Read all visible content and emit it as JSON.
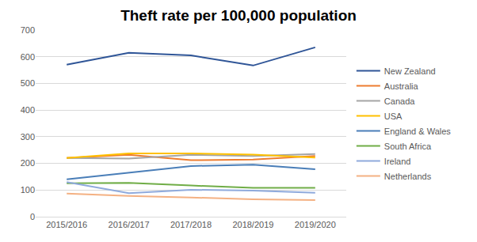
{
  "chart_data": {
    "type": "line",
    "title": "Theft rate per 100,000 population",
    "categories": [
      "2015/2016",
      "2016/2017",
      "2017/2018",
      "2018/2019",
      "2019/2020"
    ],
    "series": [
      {
        "name": "New Zealand",
        "color": "#2f5597",
        "values": [
          570,
          615,
          605,
          567,
          635
        ]
      },
      {
        "name": "Australia",
        "color": "#ed7d31",
        "values": [
          220,
          232,
          212,
          214,
          228
        ]
      },
      {
        "name": "Canada",
        "color": "#a5a5a5",
        "values": [
          220,
          218,
          232,
          228,
          235
        ]
      },
      {
        "name": "USA",
        "color": "#ffc000",
        "values": [
          220,
          237,
          237,
          233,
          222
        ]
      },
      {
        "name": "England & Wales",
        "color": "#4a7eb8",
        "values": [
          140,
          165,
          190,
          195,
          178
        ]
      },
      {
        "name": "South Africa",
        "color": "#70ad47",
        "values": [
          125,
          127,
          117,
          108,
          108
        ]
      },
      {
        "name": "Ireland",
        "color": "#8faadc",
        "values": [
          130,
          88,
          101,
          98,
          90
        ]
      },
      {
        "name": "Netherlands",
        "color": "#f4b183",
        "values": [
          87,
          78,
          72,
          65,
          62
        ]
      }
    ],
    "ylim": [
      0,
      700
    ],
    "yticks": [
      0,
      100,
      200,
      300,
      400,
      500,
      600,
      700
    ],
    "grid": true,
    "legend": "right"
  }
}
